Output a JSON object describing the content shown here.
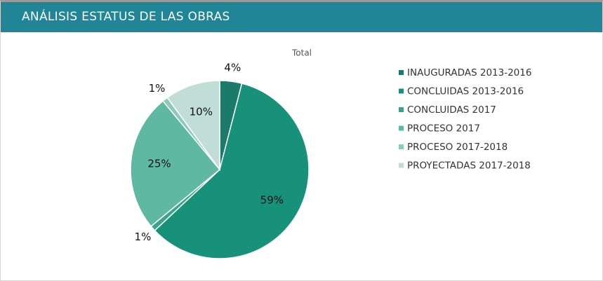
{
  "header": {
    "title": "ANÁLISIS ESTATUS DE LAS OBRAS"
  },
  "chart_data": {
    "type": "pie",
    "title": "Total",
    "categories": [
      "INAUGURADAS 2013-2016",
      "CONCLUIDAS 2013-2016",
      "CONCLUIDAS 2017",
      "PROCESO 2017",
      "PROCESO 2017-2018",
      "PROYECTADAS 2017-2018"
    ],
    "values": [
      4,
      59,
      1,
      25,
      1,
      10
    ],
    "value_labels": [
      "4%",
      "59%",
      "1%",
      "25%",
      "1%",
      "10%"
    ],
    "colors": [
      "#1c7a69",
      "#18917a",
      "#3aa48a",
      "#5fb8a2",
      "#8ccbbb",
      "#c0ded6"
    ],
    "legend": "right"
  }
}
